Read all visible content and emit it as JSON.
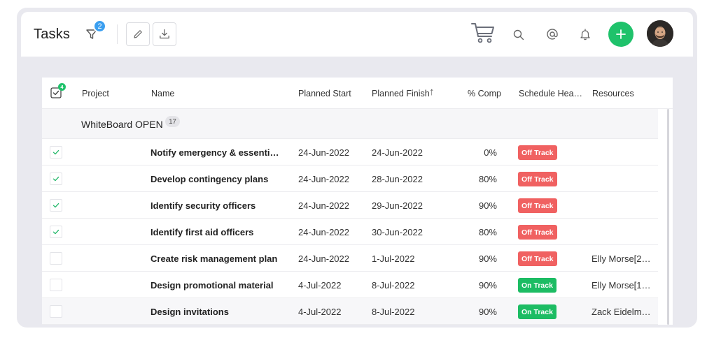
{
  "header": {
    "title": "Tasks",
    "filter_count": "2"
  },
  "table": {
    "selected_count": "4",
    "columns": {
      "project": "Project",
      "name": "Name",
      "planned_start": "Planned Start",
      "planned_finish": "Planned Finish",
      "comp": "% Comp",
      "schedule_health": "Schedule Hea…",
      "resources": "Resources"
    },
    "sort_indicator": "↑",
    "group": {
      "name": "WhiteBoard OPEN",
      "count": "17"
    },
    "rows": [
      {
        "checked": true,
        "name": "Notify emergency & essential …",
        "start": "24-Jun-2022",
        "finish": "24-Jun-2022",
        "comp": "0%",
        "health": "Off Track",
        "health_status": "off",
        "resources": ""
      },
      {
        "checked": true,
        "name": "Develop contingency plans",
        "start": "24-Jun-2022",
        "finish": "28-Jun-2022",
        "comp": "80%",
        "health": "Off Track",
        "health_status": "off",
        "resources": ""
      },
      {
        "checked": true,
        "name": "Identify security officers",
        "start": "24-Jun-2022",
        "finish": "29-Jun-2022",
        "comp": "90%",
        "health": "Off Track",
        "health_status": "off",
        "resources": ""
      },
      {
        "checked": true,
        "name": "Identify first aid officers",
        "start": "24-Jun-2022",
        "finish": "30-Jun-2022",
        "comp": "80%",
        "health": "Off Track",
        "health_status": "off",
        "resources": ""
      },
      {
        "checked": false,
        "name": "Create risk management plan",
        "start": "24-Jun-2022",
        "finish": "1-Jul-2022",
        "comp": "90%",
        "health": "Off Track",
        "health_status": "off",
        "resources": "Elly Morse[2…"
      },
      {
        "checked": false,
        "name": "Design promotional material",
        "start": "4-Jul-2022",
        "finish": "8-Jul-2022",
        "comp": "90%",
        "health": "On Track",
        "health_status": "on",
        "resources": "Elly Morse[1…"
      },
      {
        "checked": false,
        "name": "Design invitations",
        "start": "4-Jul-2022",
        "finish": "8-Jul-2022",
        "comp": "90%",
        "health": "On Track",
        "health_status": "on",
        "resources": "Zack Eidelma…"
      }
    ]
  },
  "icons": {
    "filter": "filter-icon",
    "edit": "pencil-icon",
    "download": "download-icon",
    "cart": "cart-icon",
    "search": "search-icon",
    "mention": "at-icon",
    "notifications": "bell-icon",
    "add": "plus-icon"
  },
  "colors": {
    "accent_green": "#1fc26b",
    "badge_blue": "#3b9ff0",
    "off_track": "#f06161",
    "on_track": "#1cbc63"
  }
}
